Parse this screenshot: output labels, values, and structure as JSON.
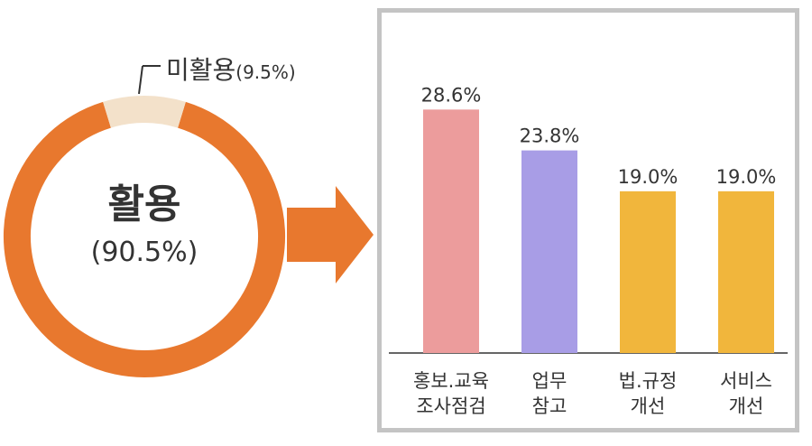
{
  "chart_data": [
    {
      "type": "pie",
      "series": [
        {
          "label": "활용",
          "value": 90.5,
          "value_label": "(90.5%)",
          "color": "#e8782e"
        },
        {
          "label": "미활용",
          "value": 9.5,
          "value_label": "(9.5%)",
          "color": "#f3e1ca"
        }
      ]
    },
    {
      "type": "bar",
      "categories": [
        [
          "홍보.교육",
          "조사점검"
        ],
        [
          "업무",
          "참고"
        ],
        [
          "법.규정",
          "개선"
        ],
        [
          "서비스",
          "개선"
        ]
      ],
      "values": [
        28.6,
        23.8,
        19.0,
        19.0
      ],
      "value_labels": [
        "28.6%",
        "23.8%",
        "19.0%",
        "19.0%"
      ],
      "colors": [
        "#ec9c9c",
        "#a89de6",
        "#f1b63c",
        "#f1b63c"
      ],
      "ylim": [
        0,
        35
      ]
    }
  ],
  "colors": {
    "arrow": "#e8782e",
    "panel_border": "#c4c4c4",
    "text": "#333333"
  }
}
